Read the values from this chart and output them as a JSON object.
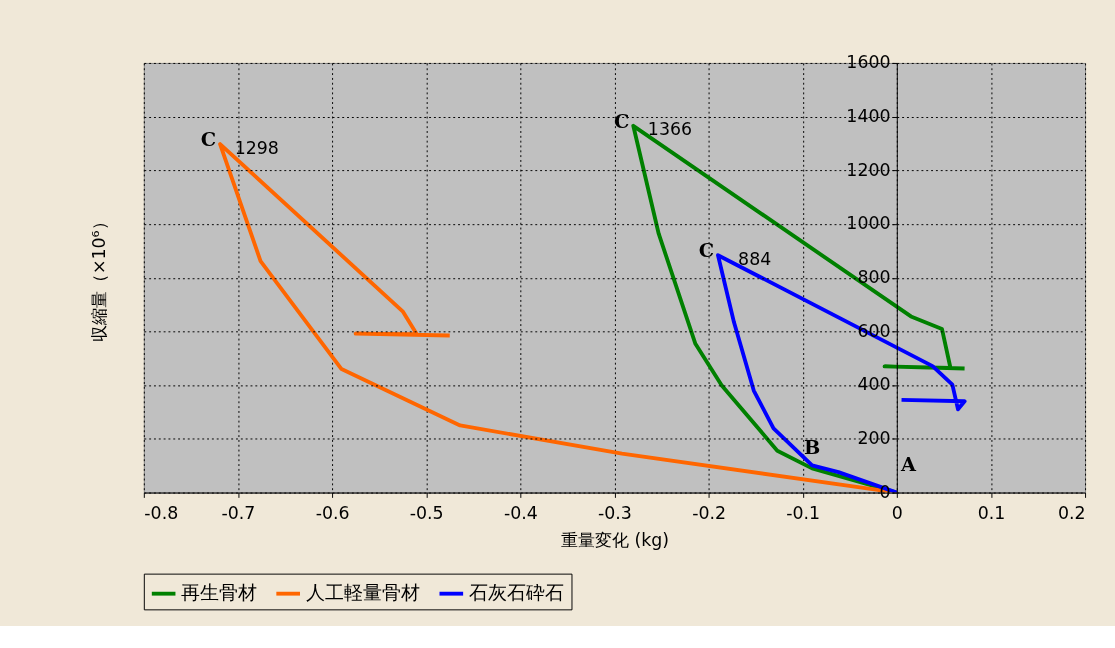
{
  "chart_data": {
    "type": "line",
    "xlabel": "重量変化 (kg)",
    "ylabel": "収縮量（×10⁶）",
    "xlim": [
      -0.8,
      0.2
    ],
    "ylim": [
      0,
      1600
    ],
    "xticks": [
      -0.8,
      -0.7,
      -0.6,
      -0.5,
      -0.4,
      -0.3,
      -0.2,
      -0.1,
      0,
      0.1,
      0.2
    ],
    "yticks": [
      0,
      200,
      400,
      600,
      800,
      {
        "value": 1000,
        "label": "1000"
      },
      {
        "value": 1200,
        "label": "1200"
      },
      {
        "value": 1400,
        "label": "1400"
      },
      {
        "value": 1600,
        "label": "1600"
      }
    ],
    "grid": true,
    "legend": "bottom",
    "marker": "none",
    "line_style": "solid",
    "series": [
      {
        "name": "再生骨材",
        "color": "#008000",
        "x": [
          0,
          -0.09,
          -0.127,
          -0.186,
          -0.214,
          -0.253,
          -0.28,
          0.015,
          0.048,
          0.057,
          -0.013,
          0.072
        ],
        "values": [
          0,
          90,
          156,
          399,
          554,
          964,
          1366,
          656,
          609,
          464,
          470,
          462
        ]
      },
      {
        "name": "人工軽量骨材",
        "color": "#ff6600",
        "x": [
          0,
          -0.292,
          -0.464,
          -0.59,
          -0.676,
          -0.719,
          -0.525,
          -0.51,
          -0.575,
          -0.475
        ],
        "values": [
          0,
          145,
          250,
          460,
          862,
          1298,
          675,
          590,
          592,
          585
        ]
      },
      {
        "name": "石灰石砕石",
        "color": "#0000ff",
        "x": [
          0,
          -0.062,
          -0.09,
          -0.131,
          -0.152,
          -0.173,
          -0.19,
          0.038,
          0.059,
          0.065,
          0.072,
          0.005
        ],
        "values": [
          0,
          76,
          101,
          239,
          380,
          634,
          884,
          471,
          402,
          310,
          340,
          345
        ]
      }
    ],
    "annotations": [
      {
        "text": "C",
        "x": -0.719,
        "y": 1298
      },
      {
        "text": "1298",
        "x": -0.719,
        "y": 1298
      },
      {
        "text": "C",
        "x": -0.28,
        "y": 1366
      },
      {
        "text": "1366",
        "x": -0.28,
        "y": 1366
      },
      {
        "text": "C",
        "x": -0.19,
        "y": 884
      },
      {
        "text": "884",
        "x": -0.19,
        "y": 884
      },
      {
        "text": "B",
        "x": -0.09,
        "y": 101
      },
      {
        "text": "A",
        "x": 0,
        "y": 0
      }
    ]
  }
}
